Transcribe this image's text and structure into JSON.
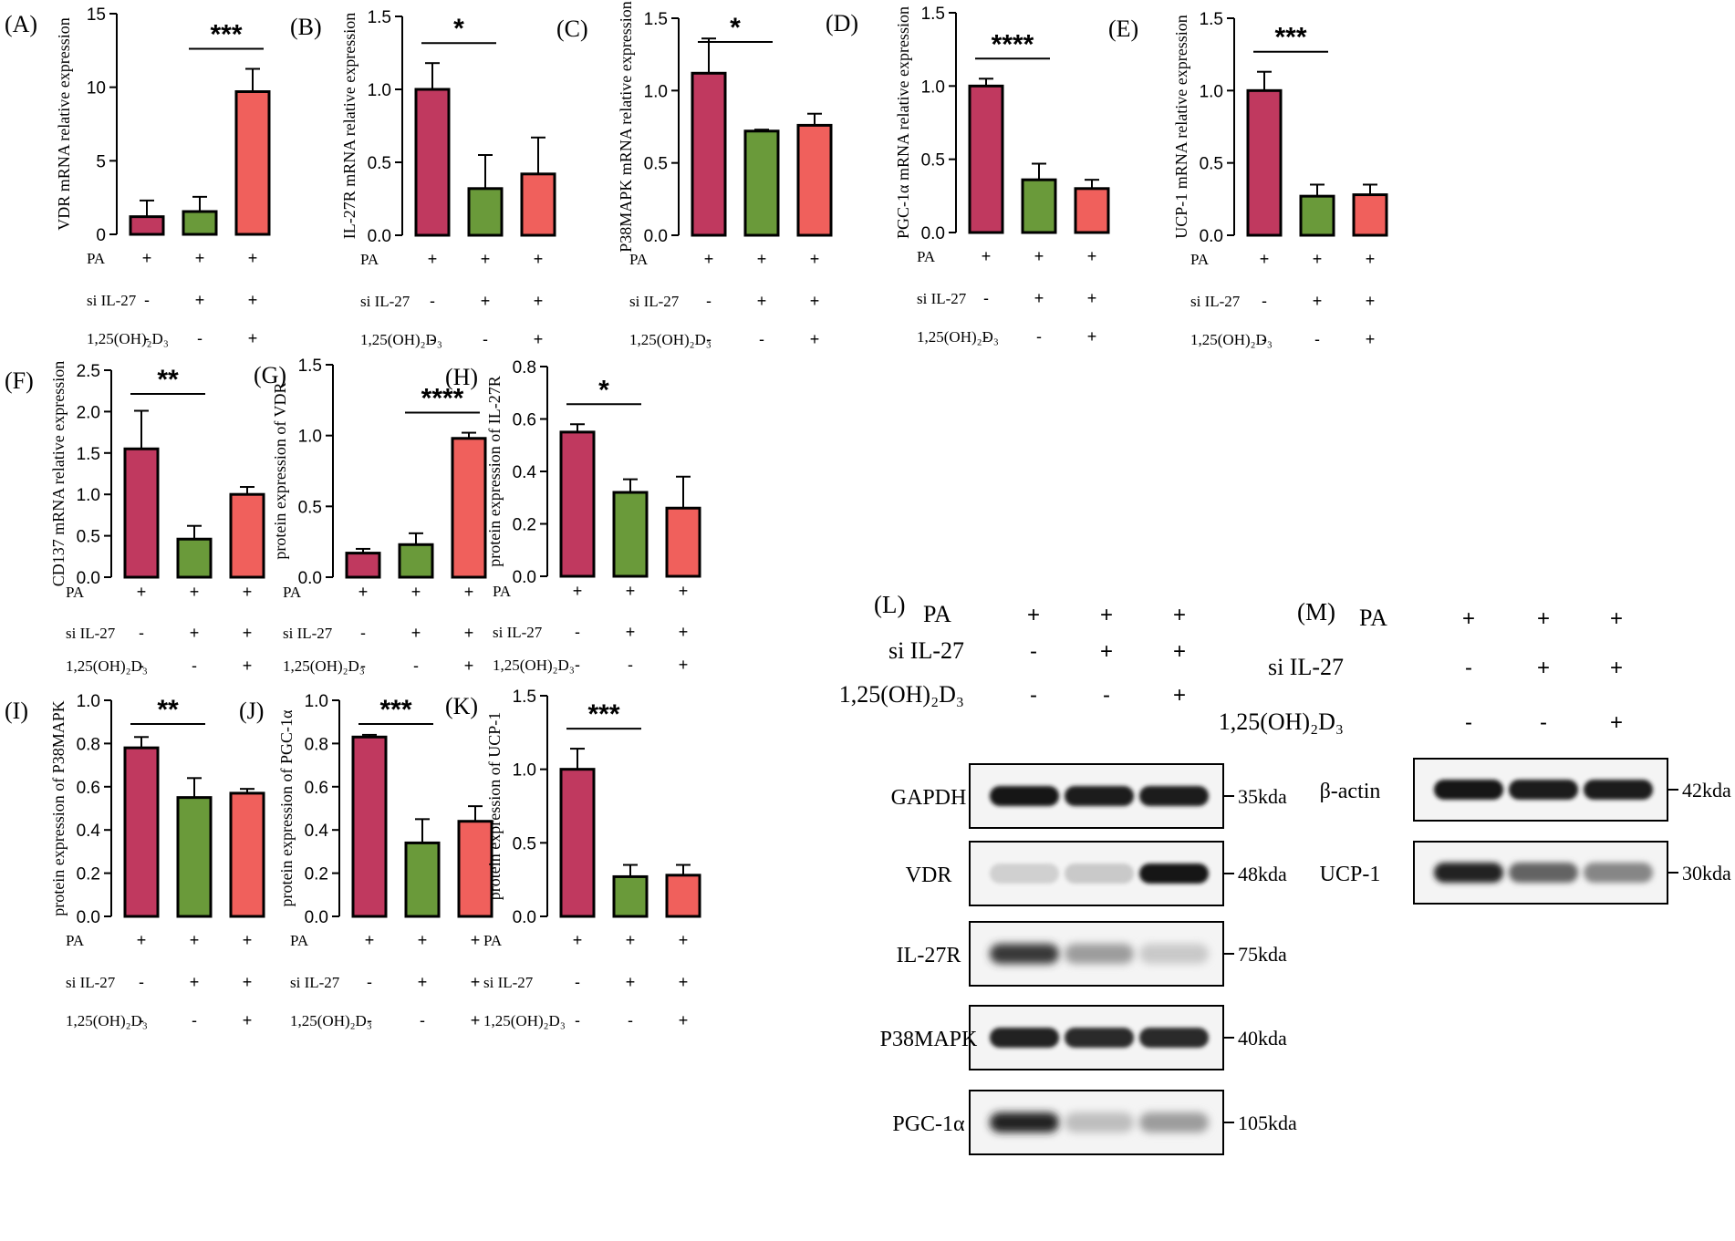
{
  "conditions": {
    "row_labels": [
      "PA",
      "si IL-27",
      "1,25(OH)₂D₃"
    ],
    "signs": [
      [
        "+",
        "+",
        "+"
      ],
      [
        "-",
        "+",
        "+"
      ],
      [
        "-",
        "-",
        "+"
      ]
    ]
  },
  "colors": {
    "bar1": "#c0395f",
    "bar2": "#6a9a3a",
    "bar3": "#f0605c"
  },
  "chart_data": [
    {
      "panel": "(A)",
      "type": "bar",
      "ylabel": "VDR mRNA relative expression",
      "ylim": [
        0,
        15
      ],
      "yticks": [
        "0",
        "5",
        "10",
        "15"
      ],
      "values": [
        1.2,
        1.55,
        9.7
      ],
      "errors": [
        1.1,
        1.0,
        1.55
      ],
      "sig": {
        "label": "***",
        "from": 1,
        "to": 2
      }
    },
    {
      "panel": "(B)",
      "type": "bar",
      "ylabel": "IL-27R mRNA relative expression",
      "ylim": [
        0,
        1.5
      ],
      "yticks": [
        "0.0",
        "0.5",
        "1.0",
        "1.5"
      ],
      "values": [
        1.0,
        0.32,
        0.42
      ],
      "errors": [
        0.18,
        0.23,
        0.25
      ],
      "sig": {
        "label": "*",
        "from": 0,
        "to": 1
      }
    },
    {
      "panel": "(C)",
      "type": "bar",
      "ylabel": "P38MAPK mRNA relative expression",
      "ylim": [
        0,
        1.5
      ],
      "yticks": [
        "0.0",
        "0.5",
        "1.0",
        "1.5"
      ],
      "values": [
        1.12,
        0.72,
        0.76
      ],
      "errors": [
        0.24,
        0.01,
        0.08
      ],
      "sig": {
        "label": "*",
        "from": 0,
        "to": 1
      }
    },
    {
      "panel": "(D)",
      "type": "bar",
      "ylabel": "PGC-1α mRNA relative expression",
      "ylim": [
        0,
        1.5
      ],
      "yticks": [
        "0.0",
        "0.5",
        "1.0",
        "1.5"
      ],
      "values": [
        1.0,
        0.36,
        0.3
      ],
      "errors": [
        0.05,
        0.11,
        0.06
      ],
      "sig": {
        "label": "****",
        "from": 0,
        "to": 1
      }
    },
    {
      "panel": "(E)",
      "type": "bar",
      "ylabel": "UCP-1 mRNA relative expression",
      "ylim": [
        0,
        1.5
      ],
      "yticks": [
        "0.0",
        "0.5",
        "1.0",
        "1.5"
      ],
      "values": [
        1.0,
        0.27,
        0.28
      ],
      "errors": [
        0.13,
        0.08,
        0.07
      ],
      "sig": {
        "label": "***",
        "from": 0,
        "to": 1
      }
    },
    {
      "panel": "(F)",
      "type": "bar",
      "ylabel": "CD137 mRNA relative expression",
      "ylim": [
        0,
        2.5
      ],
      "yticks": [
        "0.0",
        "0.5",
        "1.0",
        "1.5",
        "2.0",
        "2.5"
      ],
      "values": [
        1.55,
        0.46,
        1.0
      ],
      "errors": [
        0.46,
        0.16,
        0.09
      ],
      "sig": {
        "label": "**",
        "from": 0,
        "to": 1
      }
    },
    {
      "panel": "(G)",
      "type": "bar",
      "ylabel": "protein expression of VDR",
      "ylim": [
        0,
        1.5
      ],
      "yticks": [
        "0.0",
        "0.5",
        "1.0",
        "1.5"
      ],
      "values": [
        0.17,
        0.23,
        0.98
      ],
      "errors": [
        0.03,
        0.08,
        0.04
      ],
      "sig": {
        "label": "****",
        "from": 1,
        "to": 2
      }
    },
    {
      "panel": "(H)",
      "type": "bar",
      "ylabel": "protein expression of IL-27R",
      "ylim": [
        0,
        0.8
      ],
      "yticks": [
        "0.0",
        "0.2",
        "0.4",
        "0.6",
        "0.8"
      ],
      "values": [
        0.55,
        0.32,
        0.26
      ],
      "errors": [
        0.03,
        0.05,
        0.12
      ],
      "sig": {
        "label": "*",
        "from": 0,
        "to": 1
      }
    },
    {
      "panel": "(I)",
      "type": "bar",
      "ylabel": "protein expression of P38MAPK",
      "ylim": [
        0,
        1.0
      ],
      "yticks": [
        "0.0",
        "0.2",
        "0.4",
        "0.6",
        "0.8",
        "1.0"
      ],
      "values": [
        0.78,
        0.55,
        0.57
      ],
      "errors": [
        0.05,
        0.09,
        0.02
      ],
      "sig": {
        "label": "**",
        "from": 0,
        "to": 1
      }
    },
    {
      "panel": "(J)",
      "type": "bar",
      "ylabel": "protein expression of PGC-1α",
      "ylim": [
        0,
        1.0
      ],
      "yticks": [
        "0.0",
        "0.2",
        "0.4",
        "0.6",
        "0.8",
        "1.0"
      ],
      "values": [
        0.83,
        0.34,
        0.44
      ],
      "errors": [
        0.01,
        0.11,
        0.07
      ],
      "sig": {
        "label": "***",
        "from": 0,
        "to": 1
      }
    },
    {
      "panel": "(K)",
      "type": "bar",
      "ylabel": "protein expression of UCP-1",
      "ylim": [
        0,
        1.5
      ],
      "yticks": [
        "0.0",
        "0.5",
        "1.0",
        "1.5"
      ],
      "values": [
        1.0,
        0.27,
        0.28
      ],
      "errors": [
        0.14,
        0.08,
        0.07
      ],
      "sig": {
        "label": "***",
        "from": 0,
        "to": 1
      }
    }
  ],
  "blots": [
    {
      "panel": "(L)",
      "bands": [
        {
          "label": "GAPDH",
          "kda": "35kda",
          "intensity": [
            0.95,
            0.92,
            0.93
          ],
          "blur": 1
        },
        {
          "label": "VDR",
          "kda": "48kda",
          "intensity": [
            0.12,
            0.15,
            0.95
          ],
          "blur": 1
        },
        {
          "label": "IL-27R",
          "kda": "75kda",
          "intensity": [
            0.8,
            0.35,
            0.15
          ],
          "blur": 2
        },
        {
          "label": "P38MAPK",
          "kda": "40kda",
          "intensity": [
            0.9,
            0.85,
            0.85
          ],
          "blur": 1
        },
        {
          "label": "PGC-1α",
          "kda": "105kda",
          "intensity": [
            0.9,
            0.2,
            0.35
          ],
          "blur": 2
        }
      ]
    },
    {
      "panel": "(M)",
      "bands": [
        {
          "label": "β-actin",
          "kda": "42kda",
          "intensity": [
            0.95,
            0.93,
            0.93
          ],
          "blur": 1
        },
        {
          "label": "UCP-1",
          "kda": "30kda",
          "intensity": [
            0.9,
            0.6,
            0.45
          ],
          "blur": 1.5
        }
      ]
    }
  ]
}
